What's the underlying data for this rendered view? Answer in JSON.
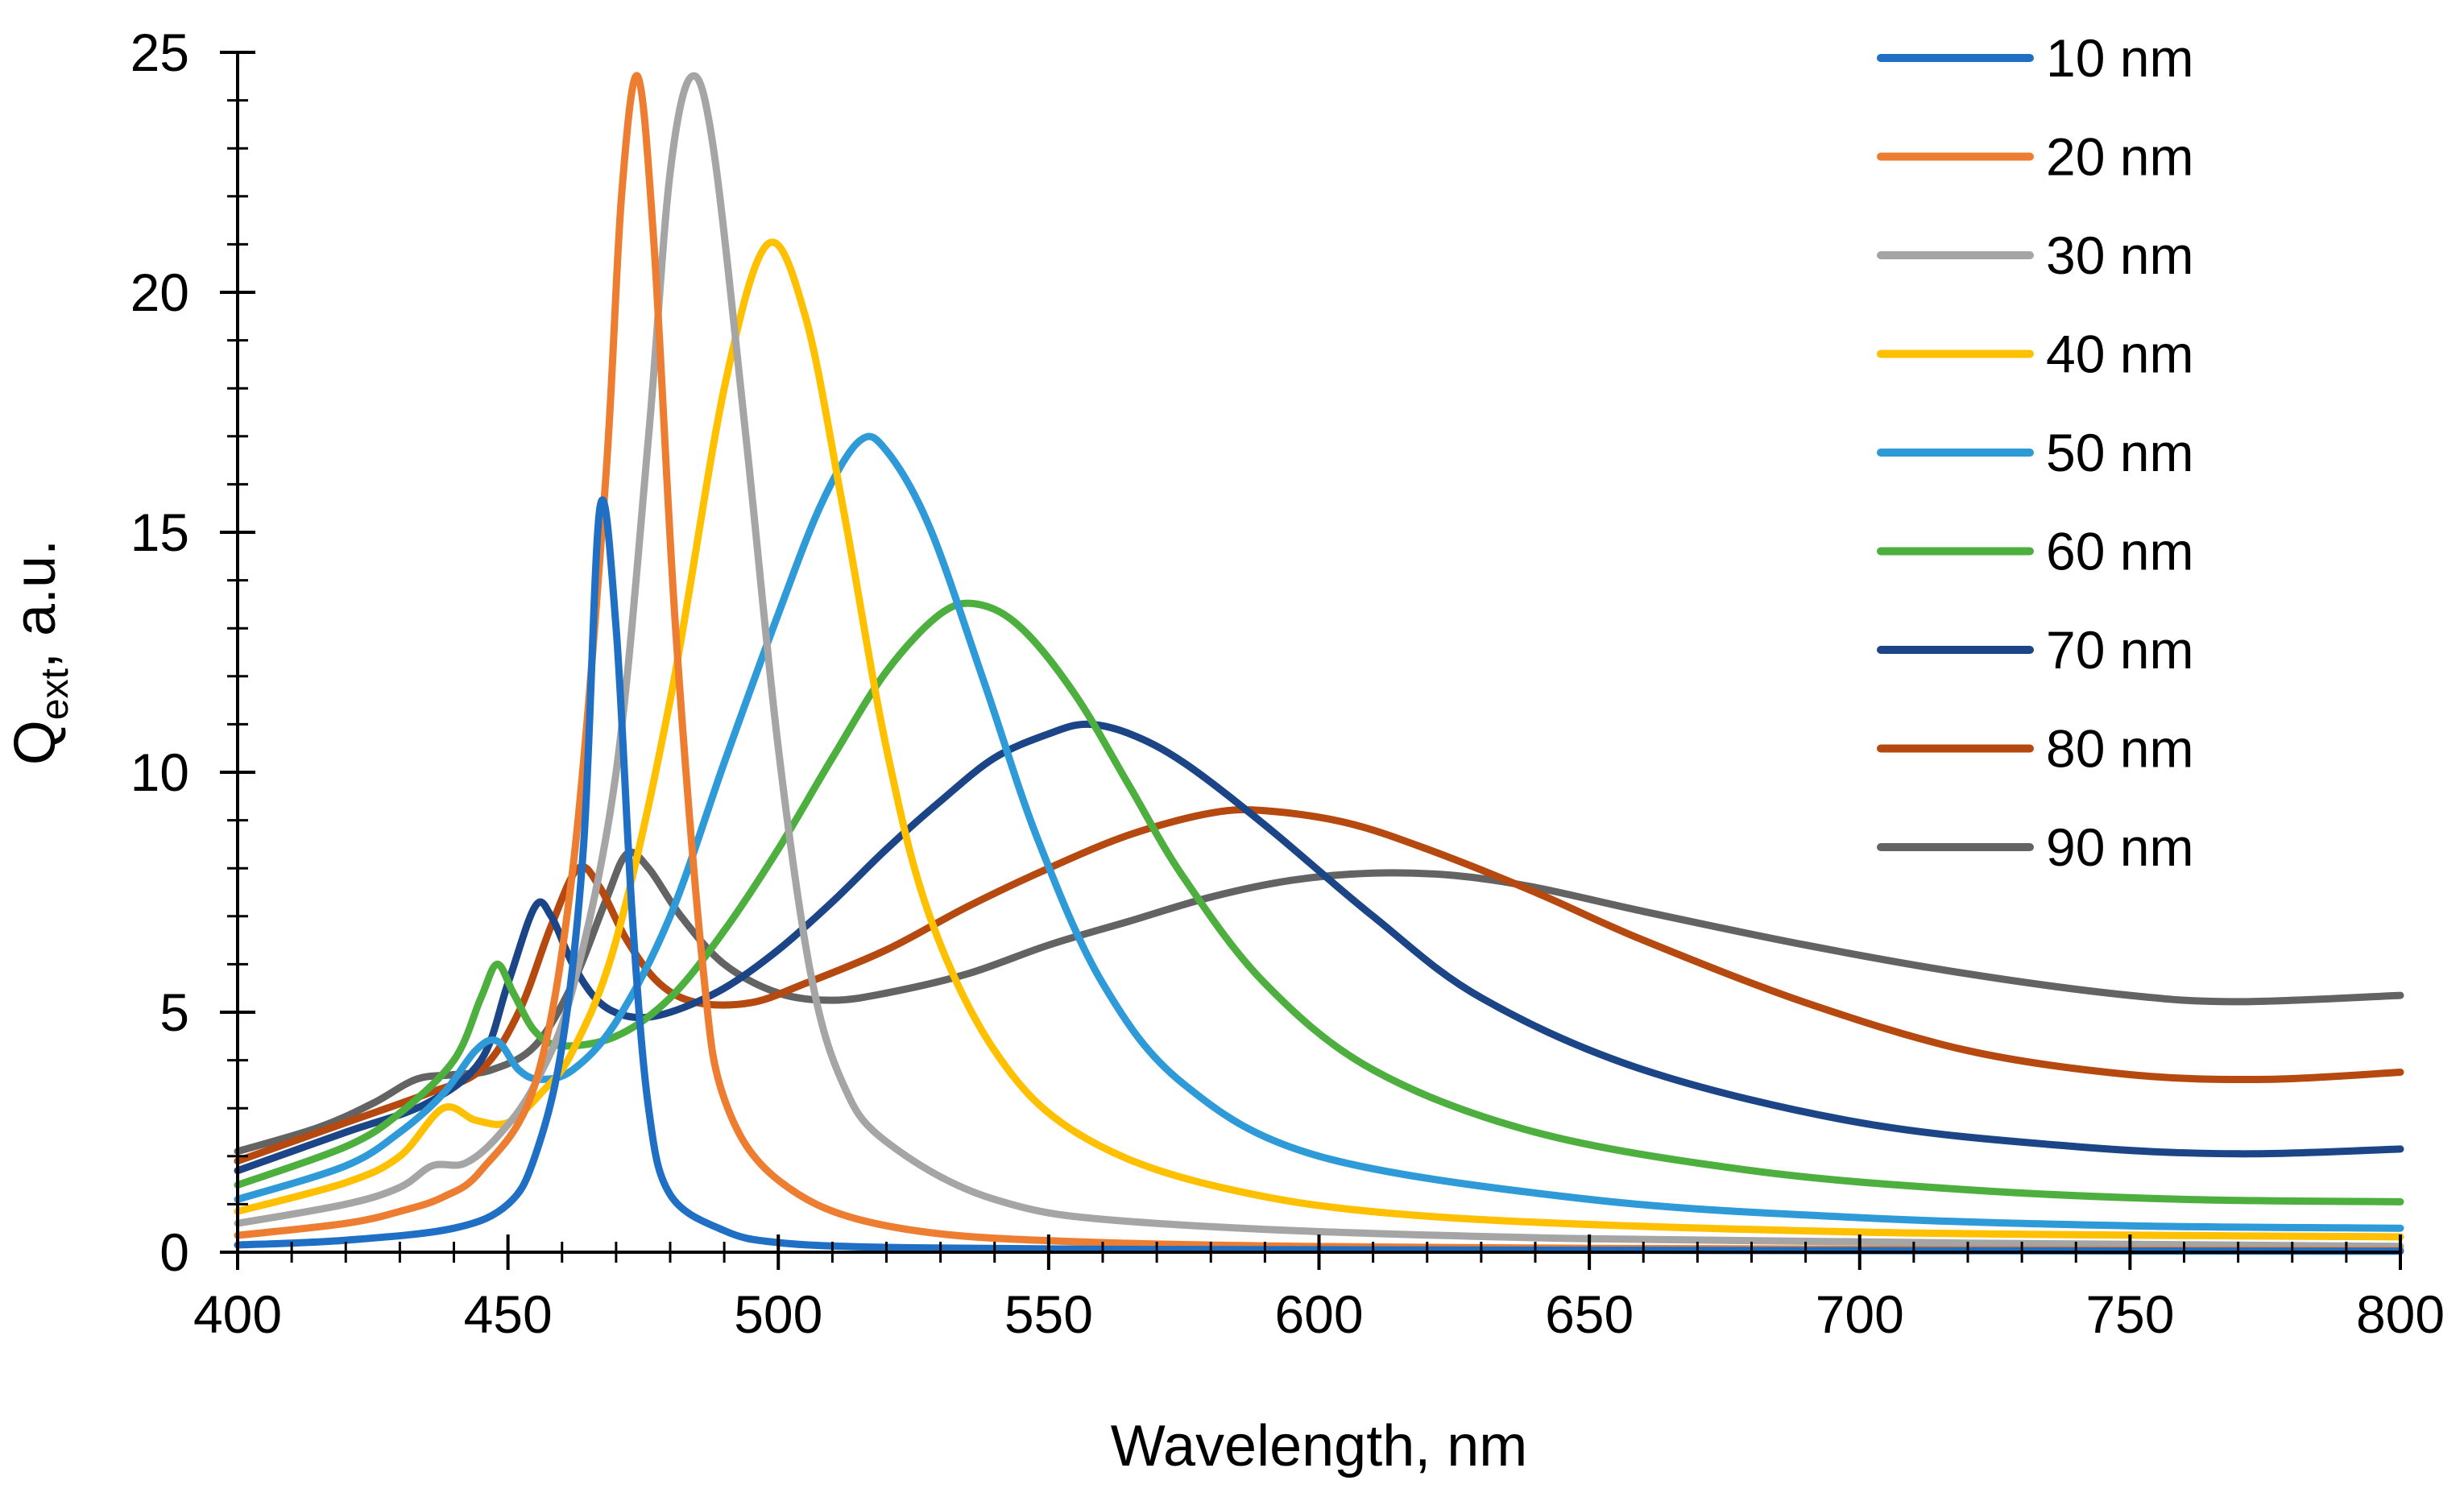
{
  "chart_data": {
    "type": "line",
    "title": "",
    "xlabel": "Wavelength, nm",
    "ylabel_main": "Q",
    "ylabel_sub": "ext",
    "ylabel_suffix": ", a.u.",
    "xlim": [
      400,
      800
    ],
    "ylim": [
      0,
      25
    ],
    "xticks": [
      400,
      450,
      500,
      550,
      600,
      650,
      700,
      750,
      800
    ],
    "yticks": [
      0,
      5,
      10,
      15,
      20,
      25
    ],
    "x_minor_step": 10,
    "y_minor_step": 1,
    "grid": false,
    "legend_position": "top-right",
    "series": [
      {
        "name": "10 nm",
        "color": "#1F6FC5",
        "points": [
          [
            400,
            0.15
          ],
          [
            420,
            0.25
          ],
          [
            440,
            0.5
          ],
          [
            450,
            1.0
          ],
          [
            455,
            2.0
          ],
          [
            460,
            4.3
          ],
          [
            464,
            8.5
          ],
          [
            467,
            15.5
          ],
          [
            470,
            13.0
          ],
          [
            473,
            7.0
          ],
          [
            476,
            3.0
          ],
          [
            480,
            1.2
          ],
          [
            490,
            0.45
          ],
          [
            500,
            0.2
          ],
          [
            520,
            0.1
          ],
          [
            560,
            0.06
          ],
          [
            650,
            0.04
          ],
          [
            800,
            0.02
          ]
        ]
      },
      {
        "name": "20 nm",
        "color": "#ED7D31",
        "points": [
          [
            400,
            0.35
          ],
          [
            420,
            0.6
          ],
          [
            430,
            0.85
          ],
          [
            438,
            1.15
          ],
          [
            445,
            1.7
          ],
          [
            455,
            3.5
          ],
          [
            462,
            8.0
          ],
          [
            468,
            16.0
          ],
          [
            471,
            22.0
          ],
          [
            474,
            24.5
          ],
          [
            477,
            21.0
          ],
          [
            481,
            13.0
          ],
          [
            486,
            6.0
          ],
          [
            490,
            3.2
          ],
          [
            500,
            1.5
          ],
          [
            520,
            0.55
          ],
          [
            560,
            0.2
          ],
          [
            650,
            0.08
          ],
          [
            800,
            0.04
          ]
        ]
      },
      {
        "name": "30 nm",
        "color": "#A5A5A5",
        "points": [
          [
            400,
            0.6
          ],
          [
            420,
            1.0
          ],
          [
            430,
            1.35
          ],
          [
            436,
            1.8
          ],
          [
            442,
            1.85
          ],
          [
            448,
            2.4
          ],
          [
            455,
            3.5
          ],
          [
            462,
            5.5
          ],
          [
            470,
            10.0
          ],
          [
            476,
            17.0
          ],
          [
            480,
            22.5
          ],
          [
            484,
            24.5
          ],
          [
            488,
            23.0
          ],
          [
            494,
            17.0
          ],
          [
            500,
            10.5
          ],
          [
            506,
            5.8
          ],
          [
            512,
            3.5
          ],
          [
            520,
            2.3
          ],
          [
            540,
            1.1
          ],
          [
            570,
            0.6
          ],
          [
            650,
            0.28
          ],
          [
            800,
            0.12
          ]
        ]
      },
      {
        "name": "40 nm",
        "color": "#FFC000",
        "points": [
          [
            400,
            0.85
          ],
          [
            420,
            1.45
          ],
          [
            430,
            2.0
          ],
          [
            438,
            3.0
          ],
          [
            444,
            2.75
          ],
          [
            450,
            2.7
          ],
          [
            456,
            3.3
          ],
          [
            462,
            4.2
          ],
          [
            470,
            6.5
          ],
          [
            480,
            11.5
          ],
          [
            490,
            18.0
          ],
          [
            498,
            21.0
          ],
          [
            505,
            19.5
          ],
          [
            512,
            15.5
          ],
          [
            520,
            10.5
          ],
          [
            528,
            7.0
          ],
          [
            540,
            4.2
          ],
          [
            555,
            2.5
          ],
          [
            580,
            1.4
          ],
          [
            620,
            0.75
          ],
          [
            700,
            0.42
          ],
          [
            800,
            0.32
          ]
        ]
      },
      {
        "name": "50 nm",
        "color": "#2E9AD8",
        "points": [
          [
            400,
            1.1
          ],
          [
            420,
            1.8
          ],
          [
            430,
            2.5
          ],
          [
            438,
            3.3
          ],
          [
            444,
            4.2
          ],
          [
            448,
            4.4
          ],
          [
            452,
            3.8
          ],
          [
            456,
            3.6
          ],
          [
            462,
            3.8
          ],
          [
            470,
            4.8
          ],
          [
            480,
            7.0
          ],
          [
            490,
            10.2
          ],
          [
            500,
            13.3
          ],
          [
            508,
            15.6
          ],
          [
            515,
            16.9
          ],
          [
            520,
            16.7
          ],
          [
            528,
            15.1
          ],
          [
            538,
            11.9
          ],
          [
            548,
            8.6
          ],
          [
            560,
            5.6
          ],
          [
            575,
            3.5
          ],
          [
            600,
            2.0
          ],
          [
            650,
            1.1
          ],
          [
            700,
            0.72
          ],
          [
            750,
            0.55
          ],
          [
            800,
            0.5
          ]
        ]
      },
      {
        "name": "60 nm",
        "color": "#4CAF3E",
        "points": [
          [
            400,
            1.4
          ],
          [
            420,
            2.2
          ],
          [
            430,
            2.9
          ],
          [
            440,
            4.0
          ],
          [
            445,
            5.3
          ],
          [
            448,
            6.0
          ],
          [
            451,
            5.4
          ],
          [
            455,
            4.6
          ],
          [
            460,
            4.3
          ],
          [
            470,
            4.5
          ],
          [
            480,
            5.3
          ],
          [
            490,
            6.7
          ],
          [
            500,
            8.4
          ],
          [
            510,
            10.3
          ],
          [
            520,
            12.1
          ],
          [
            530,
            13.3
          ],
          [
            537,
            13.5
          ],
          [
            545,
            13.0
          ],
          [
            555,
            11.6
          ],
          [
            565,
            9.7
          ],
          [
            575,
            7.8
          ],
          [
            590,
            5.6
          ],
          [
            610,
            3.8
          ],
          [
            640,
            2.5
          ],
          [
            680,
            1.7
          ],
          [
            720,
            1.3
          ],
          [
            760,
            1.1
          ],
          [
            800,
            1.05
          ]
        ]
      },
      {
        "name": "70 nm",
        "color": "#1C4587",
        "points": [
          [
            400,
            1.7
          ],
          [
            420,
            2.5
          ],
          [
            435,
            3.1
          ],
          [
            445,
            4.0
          ],
          [
            450,
            5.6
          ],
          [
            455,
            7.2
          ],
          [
            458,
            7.0
          ],
          [
            462,
            6.0
          ],
          [
            467,
            5.2
          ],
          [
            473,
            4.9
          ],
          [
            480,
            5.0
          ],
          [
            490,
            5.5
          ],
          [
            500,
            6.3
          ],
          [
            510,
            7.3
          ],
          [
            520,
            8.4
          ],
          [
            530,
            9.4
          ],
          [
            540,
            10.3
          ],
          [
            550,
            10.8
          ],
          [
            557,
            11.0
          ],
          [
            565,
            10.8
          ],
          [
            575,
            10.2
          ],
          [
            590,
            8.9
          ],
          [
            610,
            7.0
          ],
          [
            630,
            5.3
          ],
          [
            660,
            3.8
          ],
          [
            700,
            2.7
          ],
          [
            740,
            2.2
          ],
          [
            770,
            2.05
          ],
          [
            800,
            2.15
          ]
        ]
      },
      {
        "name": "80 nm",
        "color": "#B5490F",
        "points": [
          [
            400,
            1.9
          ],
          [
            420,
            2.7
          ],
          [
            435,
            3.3
          ],
          [
            445,
            3.8
          ],
          [
            452,
            5.0
          ],
          [
            458,
            6.8
          ],
          [
            463,
            8.0
          ],
          [
            467,
            7.6
          ],
          [
            472,
            6.5
          ],
          [
            478,
            5.6
          ],
          [
            485,
            5.2
          ],
          [
            495,
            5.2
          ],
          [
            505,
            5.6
          ],
          [
            520,
            6.3
          ],
          [
            535,
            7.2
          ],
          [
            550,
            8.0
          ],
          [
            565,
            8.7
          ],
          [
            580,
            9.15
          ],
          [
            590,
            9.2
          ],
          [
            605,
            8.95
          ],
          [
            620,
            8.4
          ],
          [
            640,
            7.5
          ],
          [
            660,
            6.5
          ],
          [
            690,
            5.2
          ],
          [
            720,
            4.2
          ],
          [
            750,
            3.7
          ],
          [
            775,
            3.6
          ],
          [
            800,
            3.75
          ]
        ]
      },
      {
        "name": "90 nm",
        "color": "#636363",
        "points": [
          [
            400,
            2.1
          ],
          [
            415,
            2.6
          ],
          [
            425,
            3.1
          ],
          [
            433,
            3.6
          ],
          [
            440,
            3.7
          ],
          [
            447,
            3.8
          ],
          [
            455,
            4.3
          ],
          [
            462,
            5.6
          ],
          [
            468,
            7.3
          ],
          [
            472,
            8.3
          ],
          [
            476,
            8.0
          ],
          [
            482,
            7.0
          ],
          [
            490,
            6.0
          ],
          [
            500,
            5.4
          ],
          [
            510,
            5.25
          ],
          [
            520,
            5.4
          ],
          [
            535,
            5.8
          ],
          [
            550,
            6.4
          ],
          [
            565,
            6.9
          ],
          [
            580,
            7.4
          ],
          [
            595,
            7.75
          ],
          [
            610,
            7.9
          ],
          [
            625,
            7.85
          ],
          [
            640,
            7.6
          ],
          [
            660,
            7.1
          ],
          [
            690,
            6.4
          ],
          [
            720,
            5.8
          ],
          [
            750,
            5.35
          ],
          [
            770,
            5.22
          ],
          [
            800,
            5.35
          ]
        ]
      }
    ]
  }
}
